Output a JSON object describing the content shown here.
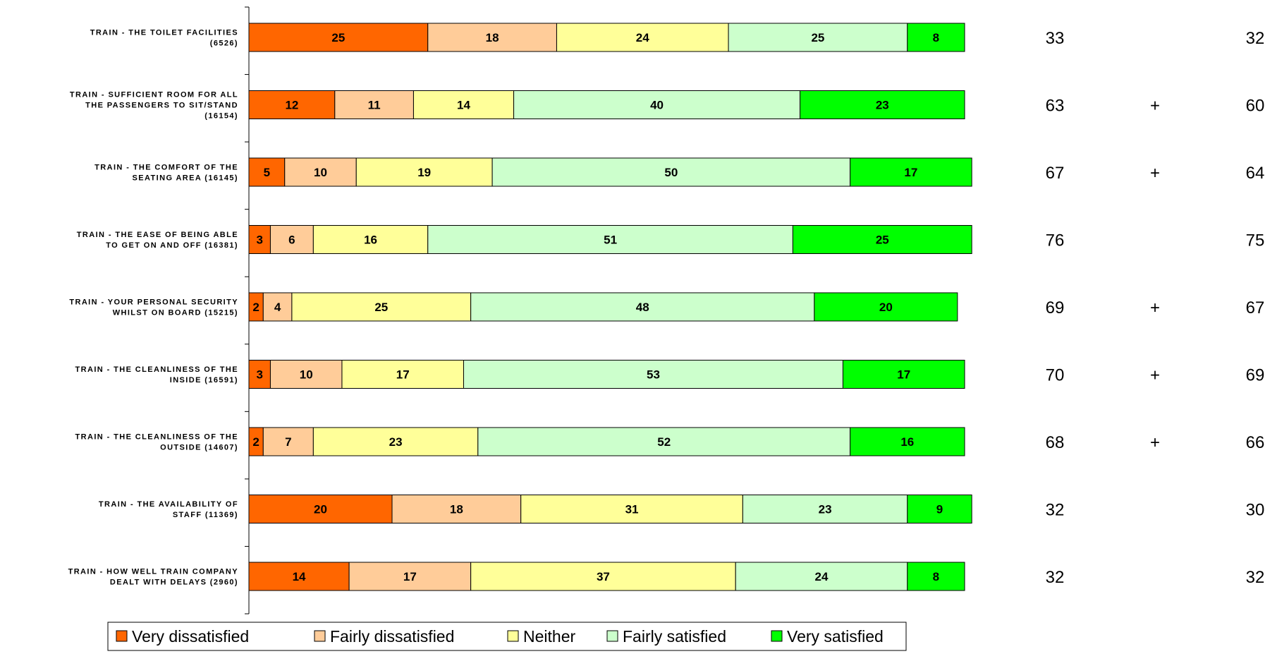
{
  "chart_data": {
    "type": "bar",
    "orientation": "horizontal",
    "stacked": true,
    "xlim": [
      0,
      100
    ],
    "grid": false,
    "legend_position": "bottom",
    "categories": [
      [
        "TRAIN - THE TOILET FACILITIES",
        "(6526)"
      ],
      [
        "TRAIN - SUFFICIENT ROOM FOR ALL",
        "THE PASSENGERS TO SIT/STAND",
        "(16154)"
      ],
      [
        "TRAIN - THE COMFORT OF THE",
        "SEATING AREA (16145)"
      ],
      [
        "TRAIN - THE EASE OF BEING ABLE",
        "TO GET ON AND OFF (16381)"
      ],
      [
        "TRAIN - YOUR PERSONAL SECURITY",
        "WHILST ON BOARD (15215)"
      ],
      [
        "TRAIN - THE CLEANLINESS OF THE",
        "INSIDE (16591)"
      ],
      [
        "TRAIN - THE CLEANLINESS OF THE",
        "OUTSIDE (14607)"
      ],
      [
        "TRAIN - THE AVAILABILITY OF",
        "STAFF (11369)"
      ],
      [
        "TRAIN - HOW WELL TRAIN COMPANY",
        "DEALT WITH DELAYS (2960)"
      ]
    ],
    "series": [
      {
        "name": "Very dissatisfied",
        "color": "#FF6600",
        "values": [
          25,
          12,
          5,
          3,
          2,
          3,
          2,
          20,
          14
        ]
      },
      {
        "name": "Fairly dissatisfied",
        "color": "#FFCC99",
        "values": [
          18,
          11,
          10,
          6,
          4,
          10,
          7,
          18,
          17
        ]
      },
      {
        "name": "Neither",
        "color": "#FFFF99",
        "values": [
          24,
          14,
          19,
          16,
          25,
          17,
          23,
          31,
          37
        ]
      },
      {
        "name": "Fairly satisfied",
        "color": "#CCFFCC",
        "values": [
          25,
          40,
          50,
          51,
          48,
          53,
          52,
          23,
          24
        ]
      },
      {
        "name": "Very satisfied",
        "color": "#00FF00",
        "values": [
          8,
          23,
          17,
          25,
          20,
          17,
          16,
          9,
          8
        ]
      }
    ],
    "scores_current": [
      "33",
      "63",
      "67",
      "76",
      "69",
      "70",
      "68",
      "32",
      "32"
    ],
    "change_markers": [
      "",
      "+",
      "+",
      "",
      "+",
      "+",
      "+",
      "",
      ""
    ],
    "scores_previous": [
      "32",
      "60",
      "64",
      "75",
      "67",
      "69",
      "66",
      "30",
      "32"
    ]
  }
}
